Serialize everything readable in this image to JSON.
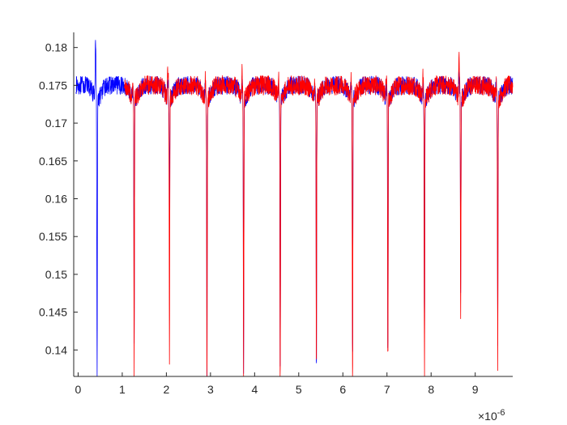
{
  "chart_data": {
    "type": "line",
    "title": "",
    "xlabel": "",
    "ylabel": "",
    "xlim": [
      -0.1,
      9.85
    ],
    "ylim": [
      0.1365,
      0.182
    ],
    "x_multiplier_label": "×10",
    "x_multiplier_exponent": "-6",
    "x_ticks": [
      0,
      1,
      2,
      3,
      4,
      5,
      6,
      7,
      8,
      9
    ],
    "x_tick_labels": [
      "0",
      "1",
      "2",
      "3",
      "4",
      "5",
      "6",
      "7",
      "8",
      "9"
    ],
    "y_ticks": [
      0.14,
      0.145,
      0.15,
      0.155,
      0.16,
      0.165,
      0.17,
      0.175,
      0.18
    ],
    "y_tick_labels": [
      "0.14",
      "0.145",
      "0.15",
      "0.155",
      "0.16",
      "0.165",
      "0.17",
      "0.175",
      "0.18"
    ],
    "grid": false,
    "legend": "none",
    "baseline": 0.175,
    "series": [
      {
        "color": "#0000ff",
        "x_range": [
          -0.05,
          9.85
        ],
        "noise": 0.0012,
        "dips": [
          {
            "x": 0.43,
            "min": 0.1372,
            "spike": 0.182
          },
          {
            "x": 1.27,
            "min": 0.1425,
            "spike": 0.1765
          },
          {
            "x": 2.07,
            "min": 0.1583,
            "spike": 0.177
          },
          {
            "x": 2.92,
            "min": 0.1372,
            "spike": 0.1765
          },
          {
            "x": 3.75,
            "min": 0.1378,
            "spike": 0.1768
          },
          {
            "x": 4.58,
            "min": 0.1388,
            "spike": 0.1765
          },
          {
            "x": 5.4,
            "min": 0.1392,
            "spike": 0.1765
          },
          {
            "x": 6.22,
            "min": 0.1405,
            "spike": 0.1765
          },
          {
            "x": 7.02,
            "min": 0.1414,
            "spike": 0.1765
          },
          {
            "x": 7.85,
            "min": 0.1428,
            "spike": 0.1765
          },
          {
            "x": 8.67,
            "min": 0.15,
            "spike": 0.178
          },
          {
            "x": 9.51,
            "min": 0.143,
            "spike": 0.177
          }
        ]
      },
      {
        "color": "#ff0000",
        "x_range": [
          1.05,
          9.85
        ],
        "noise": 0.0013,
        "dips": [
          {
            "x": 1.27,
            "min": 0.1382,
            "spike": 0.1768
          },
          {
            "x": 2.07,
            "min": 0.1402,
            "spike": 0.1792
          },
          {
            "x": 2.92,
            "min": 0.137,
            "spike": 0.1775
          },
          {
            "x": 3.75,
            "min": 0.1372,
            "spike": 0.1782
          },
          {
            "x": 4.58,
            "min": 0.1365,
            "spike": 0.1775
          },
          {
            "x": 5.4,
            "min": 0.1396,
            "spike": 0.177
          },
          {
            "x": 6.22,
            "min": 0.137,
            "spike": 0.1772
          },
          {
            "x": 7.02,
            "min": 0.1398,
            "spike": 0.1772
          },
          {
            "x": 7.85,
            "min": 0.1386,
            "spike": 0.1778
          },
          {
            "x": 8.67,
            "min": 0.145,
            "spike": 0.18
          },
          {
            "x": 9.51,
            "min": 0.1398,
            "spike": 0.1772
          }
        ]
      }
    ]
  }
}
